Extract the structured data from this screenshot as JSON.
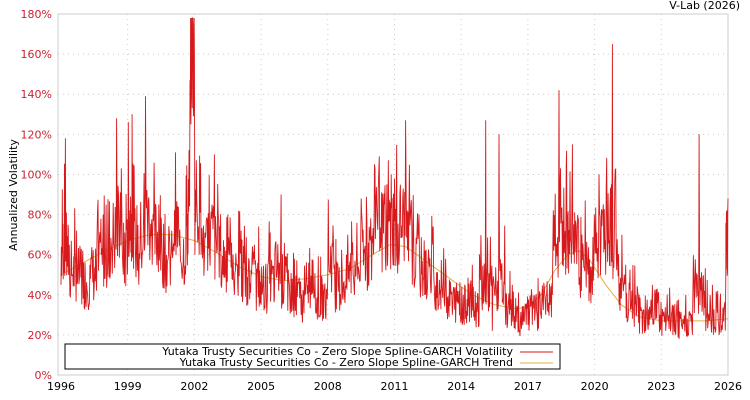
{
  "credit": "V-Lab (2026)",
  "colors": {
    "volatility": "#d7191c",
    "trend": "#e0b040",
    "ytick": "#cc2233",
    "grid": "#cccccc",
    "frame": "#cccccc"
  },
  "chart_data": {
    "type": "line",
    "title": "",
    "xlabel": "",
    "ylabel": "Annualized Volatility",
    "xlim": [
      1996,
      2026
    ],
    "ylim": [
      0,
      180
    ],
    "x_ticks": [
      "1996",
      "1999",
      "2002",
      "2005",
      "2008",
      "2011",
      "2014",
      "2017",
      "2020",
      "2023",
      "2026"
    ],
    "y_ticks": [
      "0%",
      "20%",
      "40%",
      "60%",
      "80%",
      "100%",
      "120%",
      "140%",
      "160%",
      "180%"
    ],
    "grid": true,
    "legend_position": "bottom-left inside",
    "legend": [
      "Yutaka Trusty Securities Co - Zero Slope Spline-GARCH Volatility",
      "Yutaka Trusty Securities Co - Zero Slope Spline-GARCH Trend"
    ],
    "series": [
      {
        "name": "Yutaka Trusty Securities Co - Zero Slope Spline-GARCH Volatility",
        "x": [
          1996.0,
          1996.2,
          1996.4,
          1996.7,
          1997.0,
          1997.3,
          1997.6,
          1997.9,
          1998.2,
          1998.5,
          1998.8,
          1999.0,
          1999.2,
          1999.5,
          1999.8,
          2000.1,
          2000.4,
          2000.7,
          2001.0,
          2001.3,
          2001.6,
          2001.8,
          2002.0,
          2002.3,
          2002.6,
          2002.9,
          2003.2,
          2003.5,
          2003.8,
          2004.1,
          2004.4,
          2004.7,
          2005.0,
          2005.3,
          2005.6,
          2005.9,
          2006.2,
          2006.5,
          2006.8,
          2007.1,
          2007.4,
          2007.7,
          2008.0,
          2008.3,
          2008.6,
          2008.9,
          2009.2,
          2009.5,
          2009.8,
          2010.1,
          2010.4,
          2010.7,
          2011.0,
          2011.2,
          2011.5,
          2011.8,
          2012.1,
          2012.4,
          2012.7,
          2013.0,
          2013.3,
          2013.6,
          2013.9,
          2014.2,
          2014.5,
          2014.8,
          2015.1,
          2015.4,
          2015.7,
          2016.0,
          2016.3,
          2016.6,
          2016.9,
          2017.2,
          2017.5,
          2017.8,
          2018.1,
          2018.4,
          2018.7,
          2019.0,
          2019.3,
          2019.6,
          2019.9,
          2020.2,
          2020.5,
          2020.8,
          2021.1,
          2021.4,
          2021.7,
          2022.0,
          2022.3,
          2022.6,
          2022.9,
          2023.2,
          2023.5,
          2023.8,
          2024.1,
          2024.4,
          2024.7,
          2025.0,
          2025.3,
          2025.6,
          2025.9,
          2026.0
        ],
        "values": [
          45,
          118,
          40,
          72,
          38,
          55,
          42,
          80,
          48,
          128,
          50,
          60,
          130,
          45,
          139,
          55,
          85,
          48,
          62,
          70,
          50,
          147,
          159,
          60,
          52,
          110,
          45,
          80,
          40,
          72,
          35,
          65,
          35,
          55,
          38,
          90,
          32,
          58,
          30,
          45,
          40,
          30,
          50,
          55,
          35,
          70,
          40,
          88,
          45,
          105,
          70,
          60,
          98,
          55,
          127,
          45,
          80,
          40,
          65,
          35,
          58,
          30,
          42,
          28,
          55,
          25,
          127,
          22,
          120,
          25,
          45,
          22,
          35,
          25,
          38,
          30,
          40,
          142,
          50,
          115,
          45,
          60,
          40,
          100,
          50,
          165,
          35,
          55,
          28,
          40,
          22,
          45,
          28,
          22,
          35,
          18,
          40,
          20,
          120,
          22,
          45,
          20,
          50,
          88
        ],
        "color": "#d7191c"
      },
      {
        "name": "Yutaka Trusty Securities Co - Zero Slope Spline-GARCH Trend",
        "x": [
          1996.0,
          1997.0,
          1998.0,
          1999.0,
          2000.0,
          2001.0,
          2002.0,
          2003.0,
          2004.0,
          2005.0,
          2006.0,
          2007.0,
          2008.0,
          2009.0,
          2010.0,
          2010.8,
          2011.5,
          2012.5,
          2013.5,
          2014.5,
          2015.5,
          2016.5,
          2017.0,
          2017.6,
          2018.2,
          2018.8,
          2019.3,
          2019.8,
          2020.5,
          2021.2,
          2022.0,
          2023.0,
          2024.0,
          2025.0,
          2026.0
        ],
        "values": [
          50,
          56,
          62,
          67,
          70,
          70,
          67,
          61,
          54,
          49,
          47,
          48,
          50,
          53,
          60,
          65,
          64,
          56,
          48,
          40,
          35,
          33,
          34,
          40,
          52,
          60,
          62,
          57,
          45,
          35,
          29,
          27,
          27,
          27,
          28
        ],
        "color": "#e0b040"
      }
    ]
  }
}
